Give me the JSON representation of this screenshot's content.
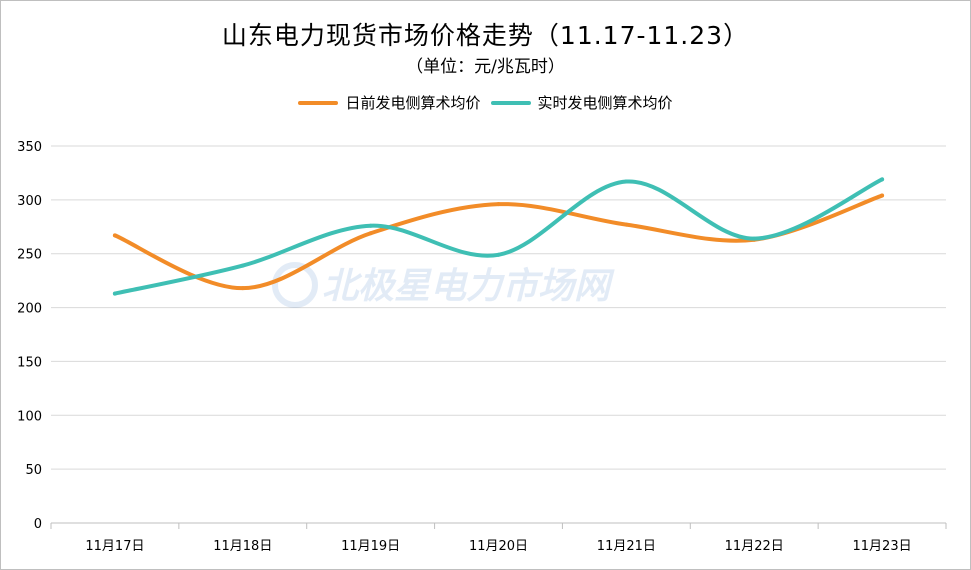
{
  "title": "山东电力现货市场价格走势（11.17-11.23）",
  "subtitle": "（单位：元/兆瓦时）",
  "watermark": "北极星电力市场网",
  "colors": {
    "dayahead": "#F28C28",
    "realtime": "#3FBFB4",
    "gridline": "#d9d9d9",
    "axis": "#bfbfbf",
    "text": "#000000"
  },
  "chart_data": {
    "type": "line",
    "smooth": true,
    "categories": [
      "11月17日",
      "11月18日",
      "11月19日",
      "11月20日",
      "11月21日",
      "11月22日",
      "11月23日"
    ],
    "series": [
      {
        "name": "日前发电侧算术均价",
        "color": "#F28C28",
        "values": [
          267,
          218,
          269,
          296,
          277,
          263,
          304
        ]
      },
      {
        "name": "实时发电侧算术均价",
        "color": "#3FBFB4",
        "values": [
          213,
          239,
          276,
          249,
          317,
          264,
          319
        ]
      }
    ],
    "ylim": [
      0,
      350
    ],
    "yticks": [
      0,
      50,
      100,
      150,
      200,
      250,
      300,
      350
    ],
    "grid": true,
    "legend_position": "top-center",
    "xlabel": "",
    "ylabel": ""
  }
}
